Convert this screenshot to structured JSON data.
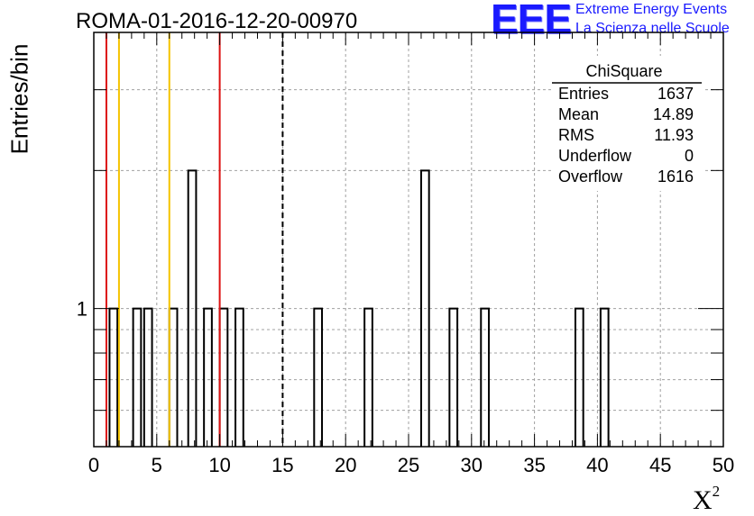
{
  "title": "ROMA-01-2016-12-20-00970",
  "logo": {
    "mark": "EEE",
    "line1": "Extreme Energy Events",
    "line2": "La Scienza nelle Scuole",
    "color": "#1a1aff"
  },
  "chart_data": {
    "type": "bar",
    "histogram": true,
    "xlabel": "X",
    "xlabel_superscript": "2",
    "ylabel": "Entries/bin",
    "xlim": [
      0,
      50
    ],
    "ylim": [
      0.5,
      4
    ],
    "yscale": "log",
    "grid": true,
    "x_ticks": [
      "0",
      "5",
      "10",
      "15",
      "20",
      "25",
      "30",
      "35",
      "40",
      "45",
      "50"
    ],
    "y_tick_label": "1",
    "bin_width": 0.625,
    "bars": [
      {
        "x": 1.25,
        "value": 1
      },
      {
        "x": 3.125,
        "value": 1
      },
      {
        "x": 4.0,
        "value": 1
      },
      {
        "x": 6.0,
        "value": 1
      },
      {
        "x": 7.5,
        "value": 2
      },
      {
        "x": 8.75,
        "value": 1
      },
      {
        "x": 10.0,
        "value": 1
      },
      {
        "x": 11.25,
        "value": 1
      },
      {
        "x": 17.5,
        "value": 1
      },
      {
        "x": 21.5,
        "value": 1
      },
      {
        "x": 26.0,
        "value": 2
      },
      {
        "x": 28.25,
        "value": 1
      },
      {
        "x": 30.75,
        "value": 1
      },
      {
        "x": 38.25,
        "value": 1
      },
      {
        "x": 40.25,
        "value": 1
      }
    ],
    "vlines": [
      {
        "x": 1.0,
        "color": "#dd1111",
        "style": "solid"
      },
      {
        "x": 2.0,
        "color": "#f5c400",
        "style": "solid"
      },
      {
        "x": 6.0,
        "color": "#f5c400",
        "style": "solid"
      },
      {
        "x": 10.0,
        "color": "#dd1111",
        "style": "solid"
      },
      {
        "x": 15.0,
        "color": "#000000",
        "style": "dashed"
      }
    ],
    "stats": {
      "title": "ChiSquare",
      "rows": [
        {
          "label": "Entries",
          "value": "1637"
        },
        {
          "label": "Mean",
          "value": "14.89"
        },
        {
          "label": "RMS",
          "value": "11.93"
        },
        {
          "label": "Underflow",
          "value": "0"
        },
        {
          "label": "Overflow",
          "value": "1616"
        }
      ]
    }
  }
}
